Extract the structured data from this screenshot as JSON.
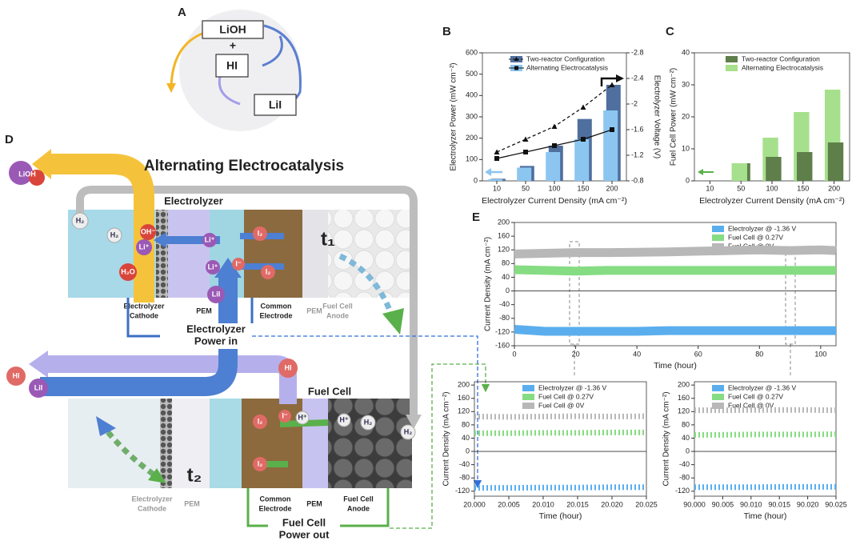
{
  "panel_labels": [
    "A",
    "B",
    "C",
    "D",
    "E"
  ],
  "panel_a": {
    "species": [
      "LiOH",
      "+",
      "HI",
      "LiI"
    ]
  },
  "diagram_d": {
    "title": "Alternating Electrocatalysis",
    "electrolyzer": "Electrolyzer",
    "fuel_cell": "Fuel Cell",
    "t1": "t₁",
    "t2": "t₂",
    "species": [
      "LiOH",
      "H₂",
      "H₂",
      "OH⁻",
      "Li⁺",
      "H₂O",
      "Li⁺",
      "Li⁺",
      "LiI",
      "I₂",
      "I⁻",
      "I₂",
      "HI",
      "LiI",
      "HI",
      "I₂",
      "I⁻",
      "H⁺",
      "H⁺",
      "H₂",
      "H₂",
      "I₂"
    ],
    "top_labels": [
      [
        "Electrolyzer",
        "Cathode"
      ],
      [
        "PEM"
      ],
      [
        "Common",
        "Electrode"
      ],
      [
        "PEM"
      ],
      [
        "Fuel Cell",
        "Anode"
      ]
    ],
    "power_in": [
      "Electrolyzer",
      "Power in"
    ],
    "bottom_labels": [
      [
        "Electrolyzer",
        "Cathode"
      ],
      [
        "PEM"
      ],
      [
        "Common",
        "Electrode"
      ],
      [
        "PEM"
      ],
      [
        "Fuel Cell",
        "Anode"
      ]
    ],
    "power_out": [
      "Fuel Cell",
      "Power out"
    ]
  },
  "chart_data": [
    {
      "type": "bar",
      "categories": [
        "10",
        "50",
        "100",
        "150",
        "200"
      ],
      "xlabel": "Electrolyzer Current Density (mA cm⁻²)",
      "ylabel": "Electrolyzer Power (mW cm⁻²)",
      "y2label": "Electrolyzer Voltage (V)",
      "ylim": [
        0,
        600
      ],
      "yticks": [
        0,
        100,
        200,
        300,
        400,
        500,
        600
      ],
      "y2lim": [
        -0.8,
        -2.8
      ],
      "y2ticks": [
        -0.8,
        -1.2,
        -1.6,
        -2,
        -2.4,
        -2.8
      ],
      "legend": "upper left",
      "series": [
        {
          "name": "Two-reactor Configuration",
          "color": "#4f6f9e",
          "values": [
            10,
            70,
            165,
            290,
            450
          ],
          "y2_values": [
            -1.25,
            -1.45,
            -1.65,
            -1.95,
            -2.3
          ],
          "line_color": "#111",
          "line_style": "dashed",
          "marker": "triangle"
        },
        {
          "name": "Alternating Electrocatalysis",
          "color": "#8cc6f0",
          "values": [
            8,
            62,
            135,
            195,
            330
          ],
          "y2_values": [
            -1.15,
            -1.25,
            -1.35,
            -1.45,
            -1.6
          ],
          "line_color": "#111",
          "line_style": "solid",
          "marker": "square"
        }
      ]
    },
    {
      "type": "bar",
      "categories": [
        "10",
        "50",
        "100",
        "150",
        "200"
      ],
      "xlabel": "Electrolyzer Current Density (mA cm⁻²)",
      "ylabel": "Fuel Cell Power (mW cm⁻²)",
      "ylim": [
        0,
        40
      ],
      "yticks": [
        0,
        10,
        20,
        30,
        40
      ],
      "legend": "upper right",
      "series": [
        {
          "name": "Two-reactor Configuration",
          "color": "#5e7f4a",
          "values": [
            0,
            5.5,
            7.5,
            9,
            12
          ]
        },
        {
          "name": "Alternating Electrocatalysis",
          "color": "#a6e08c",
          "values": [
            0,
            5.5,
            13.5,
            21.5,
            28.5
          ]
        }
      ]
    },
    {
      "type": "line",
      "xlabel": "Time (hour)",
      "ylabel": "Current Density (mA cm⁻²)",
      "x": [
        0,
        10,
        20,
        30,
        40,
        50,
        60,
        70,
        80,
        90,
        100,
        105
      ],
      "xlim": [
        0,
        105
      ],
      "xticks": [
        0,
        20,
        40,
        60,
        80,
        100
      ],
      "ylim": [
        -160,
        200
      ],
      "yticks": [
        -160,
        -120,
        -80,
        -40,
        0,
        40,
        80,
        120,
        160,
        200
      ],
      "legend": "upper right",
      "line_style": "solid",
      "series": [
        {
          "name": "Electrolyzer @ -1.36 V",
          "color": "#5aaeee",
          "values": [
            -112,
            -118,
            -118,
            -118,
            -118,
            -116,
            -116,
            -116,
            -116,
            -116,
            -116,
            -116
          ]
        },
        {
          "name": "Fuel Cell @ 0.27V",
          "color": "#86dc82",
          "values": [
            62,
            60,
            58,
            60,
            60,
            60,
            60,
            60,
            60,
            60,
            60,
            60
          ]
        },
        {
          "name": "Fuel Cell @ 0V",
          "color": "#b8b8b8",
          "values": [
            108,
            110,
            112,
            112,
            113,
            114,
            116,
            118,
            120,
            118,
            120,
            118
          ]
        }
      ]
    },
    {
      "type": "line",
      "xlabel": "Time (hour)",
      "ylabel": "Current Density (mA cm⁻²)",
      "x": [
        20,
        20.005,
        20.01,
        20.015,
        20.02,
        20.025
      ],
      "xlim": [
        20,
        20.025
      ],
      "xticks": [
        {
          "value": 20,
          "label": "20.000"
        },
        {
          "value": 20.005,
          "label": "20.005"
        },
        {
          "value": 20.01,
          "label": "20.010"
        },
        {
          "value": 20.015,
          "label": "20.015"
        },
        {
          "value": 20.02,
          "label": "20.020"
        },
        {
          "value": 20.025,
          "label": "20.025"
        }
      ],
      "ylim": [
        -135,
        210
      ],
      "yticks": [
        -120,
        -80,
        -40,
        0,
        40,
        80,
        120,
        160,
        200
      ],
      "legend": "upper right",
      "line_style": "dashed",
      "series": [
        {
          "name": "Electrolyzer @ -1.36 V",
          "color": "#5aaeee",
          "values": [
            -110,
            -110,
            -109,
            -109,
            -108,
            -108
          ]
        },
        {
          "name": "Fuel Cell @ 0.27V",
          "color": "#86dc82",
          "values": [
            55,
            55,
            56,
            56,
            57,
            57
          ]
        },
        {
          "name": "Fuel Cell @ 0V",
          "color": "#b8b8b8",
          "values": [
            105,
            104,
            105,
            106,
            105,
            106
          ]
        }
      ]
    },
    {
      "type": "line",
      "xlabel": "Time (hour)",
      "ylabel": "Current Density (mA cm⁻²)",
      "x": [
        90,
        90.005,
        90.01,
        90.015,
        90.02,
        90.025
      ],
      "xlim": [
        90,
        90.025
      ],
      "xticks": [
        {
          "value": 90,
          "label": "90.000"
        },
        {
          "value": 90.005,
          "label": "90.005"
        },
        {
          "value": 90.01,
          "label": "90.010"
        },
        {
          "value": 90.015,
          "label": "90.015"
        },
        {
          "value": 90.02,
          "label": "90.020"
        },
        {
          "value": 90.025,
          "label": "90.025"
        }
      ],
      "ylim": [
        -135,
        210
      ],
      "yticks": [
        -120,
        -80,
        -40,
        0,
        40,
        80,
        120,
        160,
        200
      ],
      "legend": "upper right",
      "line_style": "dashed",
      "series": [
        {
          "name": "Electrolyzer @ -1.36 V",
          "color": "#5aaeee",
          "values": [
            -108,
            -108,
            -108,
            -107,
            -107,
            -107
          ]
        },
        {
          "name": "Fuel Cell @ 0.27V",
          "color": "#86dc82",
          "values": [
            50,
            50,
            51,
            51,
            51,
            52
          ]
        },
        {
          "name": "Fuel Cell @ 0V",
          "color": "#b8b8b8",
          "values": [
            124,
            124,
            125,
            125,
            125,
            124
          ]
        }
      ]
    }
  ]
}
